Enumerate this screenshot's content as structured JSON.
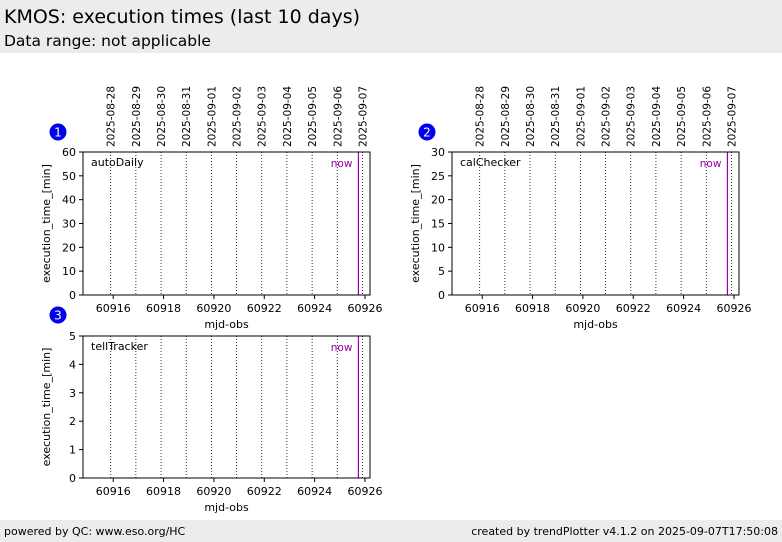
{
  "header": {
    "title": "KMOS: execution times (last 10 days)",
    "subtitle": "Data range: not applicable"
  },
  "footer": {
    "left": "powered by QC: www.eso.org/HC",
    "right": "created by trendPlotter v4.1.2 on 2025-09-07T17:50:08"
  },
  "colors": {
    "now_line": "#9900aa",
    "badge": "#0000ee",
    "header_bg": "#ececec"
  },
  "chart_data": [
    {
      "type": "scatter",
      "badge": "1",
      "label": "autoDaily",
      "xlabel": "mjd-obs",
      "ylabel": "execution_time_[min]",
      "xlim": [
        60914.8,
        60926.2
      ],
      "ylim": [
        0,
        60
      ],
      "yticks": [
        0,
        10,
        20,
        30,
        40,
        50,
        60
      ],
      "xticks": [
        60916,
        60918,
        60920,
        60922,
        60924,
        60926
      ],
      "date_lines": [
        60915.9,
        60916.9,
        60917.9,
        60918.9,
        60919.9,
        60920.9,
        60921.9,
        60922.9,
        60923.9,
        60924.9,
        60925.9
      ],
      "date_labels": [
        "2025-08-28",
        "2025-08-29",
        "2025-08-30",
        "2025-08-31",
        "2025-09-01",
        "2025-09-02",
        "2025-09-03",
        "2025-09-04",
        "2025-09-05",
        "2025-09-06",
        "2025-09-07"
      ],
      "now_x": 60925.74,
      "now_label": "now",
      "series": []
    },
    {
      "type": "scatter",
      "badge": "2",
      "label": "calChecker",
      "xlabel": "mjd-obs",
      "ylabel": "execution_time_[min]",
      "xlim": [
        60914.8,
        60926.2
      ],
      "ylim": [
        0,
        30
      ],
      "yticks": [
        0,
        5,
        10,
        15,
        20,
        25,
        30
      ],
      "xticks": [
        60916,
        60918,
        60920,
        60922,
        60924,
        60926
      ],
      "date_lines": [
        60915.9,
        60916.9,
        60917.9,
        60918.9,
        60919.9,
        60920.9,
        60921.9,
        60922.9,
        60923.9,
        60924.9,
        60925.9
      ],
      "date_labels": [
        "2025-08-28",
        "2025-08-29",
        "2025-08-30",
        "2025-08-31",
        "2025-09-01",
        "2025-09-02",
        "2025-09-03",
        "2025-09-04",
        "2025-09-05",
        "2025-09-06",
        "2025-09-07"
      ],
      "now_x": 60925.74,
      "now_label": "now",
      "series": []
    },
    {
      "type": "scatter",
      "badge": "3",
      "label": "tellTracker",
      "xlabel": "mjd-obs",
      "ylabel": "execution_time_[min]",
      "xlim": [
        60914.8,
        60926.2
      ],
      "ylim": [
        0,
        5
      ],
      "yticks": [
        0,
        1,
        2,
        3,
        4,
        5
      ],
      "xticks": [
        60916,
        60918,
        60920,
        60922,
        60924,
        60926
      ],
      "date_lines": [
        60915.9,
        60916.9,
        60917.9,
        60918.9,
        60919.9,
        60920.9,
        60921.9,
        60922.9,
        60923.9,
        60924.9,
        60925.9
      ],
      "date_labels": [],
      "now_x": 60925.74,
      "now_label": "now",
      "series": []
    }
  ]
}
